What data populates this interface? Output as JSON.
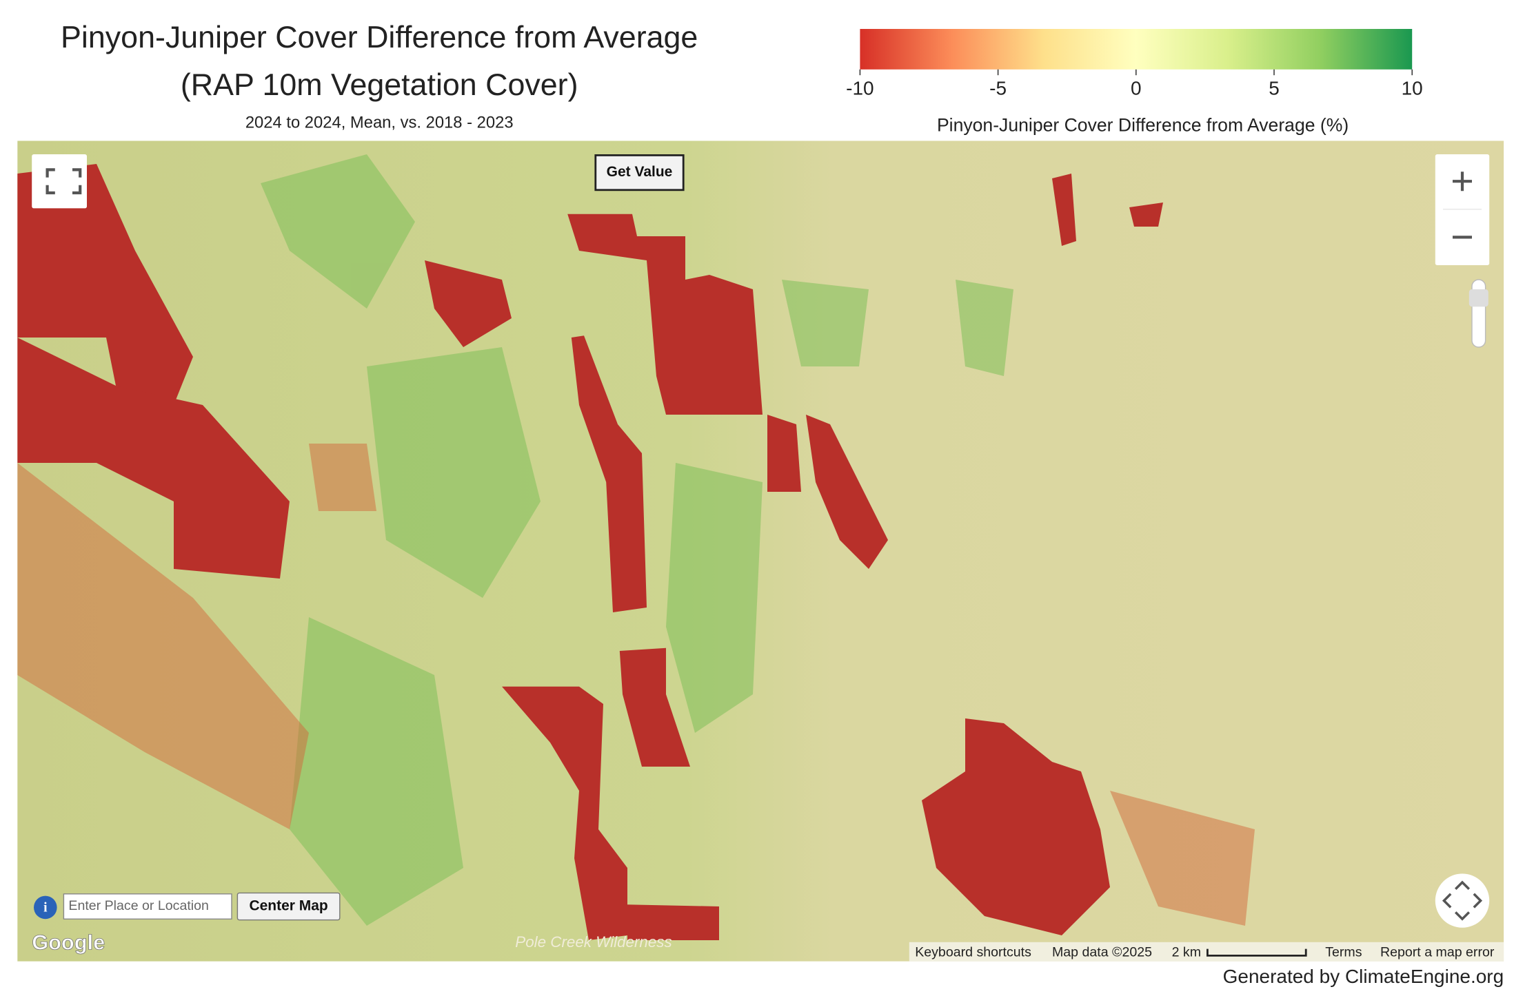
{
  "header": {
    "title_lines": [
      "Pinyon-Juniper Cover Difference from Average",
      "(RAP 10m Vegetation Cover)"
    ],
    "subtitle": "2024 to 2024, Mean, vs. 2018 - 2023"
  },
  "legend": {
    "ticks": [
      -10,
      -5,
      0,
      5,
      10
    ],
    "colors": [
      "#d73027",
      "#fc8d59",
      "#fee08b",
      "#ffffbf",
      "#d9ef8b",
      "#91cf60",
      "#1a9850"
    ],
    "title": "Pinyon-Juniper Cover Difference from Average (%)"
  },
  "map": {
    "get_value": "Get Value",
    "search_placeholder": "Enter Place or Location",
    "center_map": "Center Map",
    "logo": "Google",
    "place_label": "Pole Creek Wilderness",
    "attribution": [
      "Keyboard shortcuts",
      "Map data ©2025",
      "2 km",
      "Terms",
      "Report a map error"
    ]
  },
  "footer": "Generated by ClimateEngine.org"
}
